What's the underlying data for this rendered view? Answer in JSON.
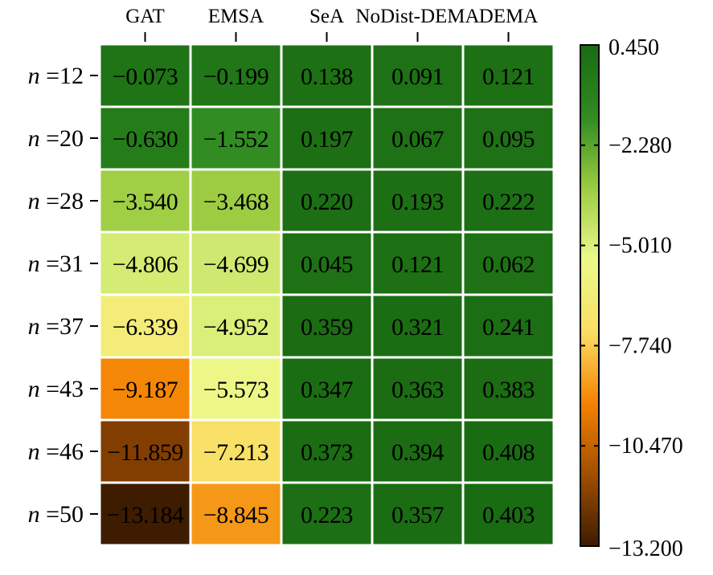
{
  "chart_data": {
    "type": "heatmap",
    "columns": [
      "GAT",
      "EMSA",
      "SeA",
      "NoDist-DEMA",
      "DEMA"
    ],
    "rows": [
      "12",
      "20",
      "28",
      "31",
      "37",
      "43",
      "46",
      "50"
    ],
    "row_label_prefix": "n =",
    "values": [
      [
        -0.073,
        -0.199,
        0.138,
        0.091,
        0.121
      ],
      [
        -0.63,
        -1.552,
        0.197,
        0.067,
        0.095
      ],
      [
        -3.54,
        -3.468,
        0.22,
        0.193,
        0.222
      ],
      [
        -4.806,
        -4.699,
        0.045,
        0.121,
        0.062
      ],
      [
        -6.339,
        -4.952,
        0.359,
        0.321,
        0.241
      ],
      [
        -9.187,
        -5.573,
        0.347,
        0.363,
        0.383
      ],
      [
        -11.859,
        -7.213,
        0.373,
        0.394,
        0.408
      ],
      [
        -13.184,
        -8.845,
        0.223,
        0.357,
        0.403
      ]
    ],
    "colorbar": {
      "min": -13.2,
      "max": 0.45,
      "ticks": [
        "0.450",
        "−2.280",
        "−5.010",
        "−7.740",
        "−10.470",
        "−13.200"
      ],
      "colors": [
        "#3d1c00",
        "#a14e00",
        "#f58200",
        "#fadf64",
        "#ecf98a",
        "#9ccc42",
        "#2e8b20",
        "#1a6b12"
      ]
    }
  }
}
